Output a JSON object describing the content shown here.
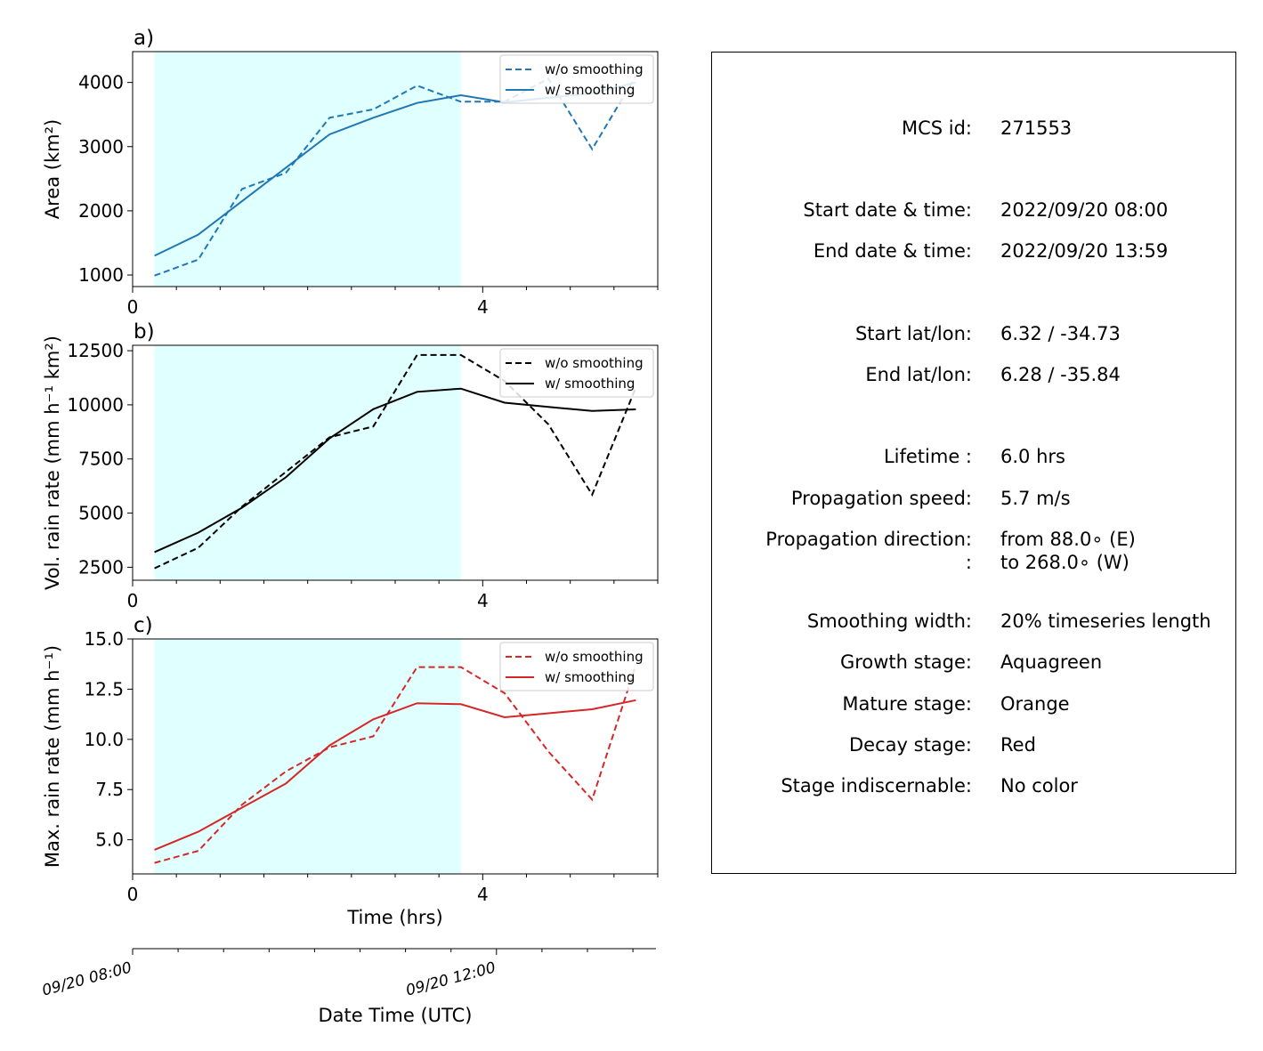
{
  "chart_data": [
    {
      "type": "line",
      "panel_label": "a)",
      "ylabel": "Area  (km²)",
      "x": [
        0.25,
        0.75,
        1.25,
        1.75,
        2.25,
        2.75,
        3.25,
        3.75,
        4.25,
        4.75,
        5.25,
        5.75
      ],
      "xlim": [
        0,
        6
      ],
      "xticks": [
        0,
        4
      ],
      "ylim": [
        820,
        4480
      ],
      "yticks": [
        1000,
        2000,
        3000,
        4000
      ],
      "color": "#1f77b4",
      "shaded_x": [
        0.25,
        3.75
      ],
      "shade_color": "#e0ffff",
      "legend_position": "top-right",
      "series": [
        {
          "name": "w/o smoothing",
          "style": "dashed",
          "values": [
            990,
            1240,
            2340,
            2590,
            3450,
            3580,
            3950,
            3700,
            3700,
            4060,
            2960,
            4100
          ]
        },
        {
          "name": "w/ smoothing",
          "style": "solid",
          "values": [
            1300,
            1630,
            2150,
            2670,
            3190,
            3450,
            3680,
            3800,
            3690,
            3760,
            3830,
            4000
          ]
        }
      ]
    },
    {
      "type": "line",
      "panel_label": "b)",
      "ylabel": "Vol. rain rate (mm h⁻¹ km²)",
      "x": [
        0.25,
        0.75,
        1.25,
        1.75,
        2.25,
        2.75,
        3.25,
        3.75,
        4.25,
        4.75,
        5.25,
        5.75
      ],
      "xlim": [
        0,
        6
      ],
      "xticks": [
        0,
        4
      ],
      "ylim": [
        1900,
        12750
      ],
      "yticks": [
        2500,
        5000,
        7500,
        10000,
        12500
      ],
      "color": "#000000",
      "shaded_x": [
        0.25,
        3.75
      ],
      "shade_color": "#e0ffff",
      "legend_position": "top-right",
      "series": [
        {
          "name": "w/o smoothing",
          "style": "dashed",
          "values": [
            2450,
            3400,
            5300,
            6900,
            8500,
            9000,
            12300,
            12300,
            11100,
            9100,
            5850,
            10800
          ]
        },
        {
          "name": "w/ smoothing",
          "style": "solid",
          "values": [
            3200,
            4100,
            5250,
            6650,
            8450,
            9800,
            10600,
            10750,
            10100,
            9900,
            9720,
            9790
          ]
        }
      ]
    },
    {
      "type": "line",
      "panel_label": "c)",
      "ylabel": "Max. rain rate  (mm h⁻¹)",
      "x": [
        0.25,
        0.75,
        1.25,
        1.75,
        2.25,
        2.75,
        3.25,
        3.75,
        4.25,
        4.75,
        5.25,
        5.75
      ],
      "xlim": [
        0,
        6
      ],
      "xticks": [
        0,
        4
      ],
      "xlabel": "Time (hrs)",
      "ylim": [
        3.3,
        15.0
      ],
      "yticks": [
        5.0,
        7.5,
        10.0,
        12.5,
        15.0
      ],
      "color": "#d62728",
      "shaded_x": [
        0.25,
        3.75
      ],
      "shade_color": "#e0ffff",
      "legend_position": "top-right",
      "series": [
        {
          "name": "w/o smoothing",
          "style": "dashed",
          "values": [
            3.85,
            4.45,
            6.75,
            8.4,
            9.6,
            10.15,
            13.6,
            13.6,
            12.3,
            9.4,
            7.0,
            13.7
          ]
        },
        {
          "name": "w/ smoothing",
          "style": "solid",
          "values": [
            4.5,
            5.4,
            6.6,
            7.8,
            9.7,
            11.0,
            11.8,
            11.75,
            11.1,
            11.3,
            11.5,
            11.95
          ]
        }
      ]
    }
  ],
  "date_axis": {
    "xlabel": "Date Time (UTC)",
    "ticks": [
      "09/20 08:00",
      "09/20 12:00"
    ]
  },
  "info": [
    {
      "label": "MCS id:",
      "value": "271553"
    },
    {
      "label": "Start date & time:",
      "value": "2022/09/20 08:00"
    },
    {
      "label": "End date & time:",
      "value": "2022/09/20 13:59"
    },
    {
      "label": "Start lat/lon:",
      "value": "6.32 / -34.73"
    },
    {
      "label": "End lat/lon:",
      "value": "6.28 / -35.84"
    },
    {
      "label": "Lifetime :",
      "value": "6.0 hrs"
    },
    {
      "label": "Propagation speed:",
      "value": "5.7 m/s"
    },
    {
      "label": "Propagation direction:",
      "value": "from  88.0∘ (E)"
    },
    {
      "label": ":",
      "value": "to   268.0∘ (W)"
    },
    {
      "label": "Smoothing width:",
      "value": "20% timeseries length"
    },
    {
      "label": "Growth stage:",
      "value": "Aquagreen"
    },
    {
      "label": "Mature stage:",
      "value": "Orange"
    },
    {
      "label": "Decay stage:",
      "value": "Red"
    },
    {
      "label": "Stage indiscernable:",
      "value": "No color"
    }
  ]
}
